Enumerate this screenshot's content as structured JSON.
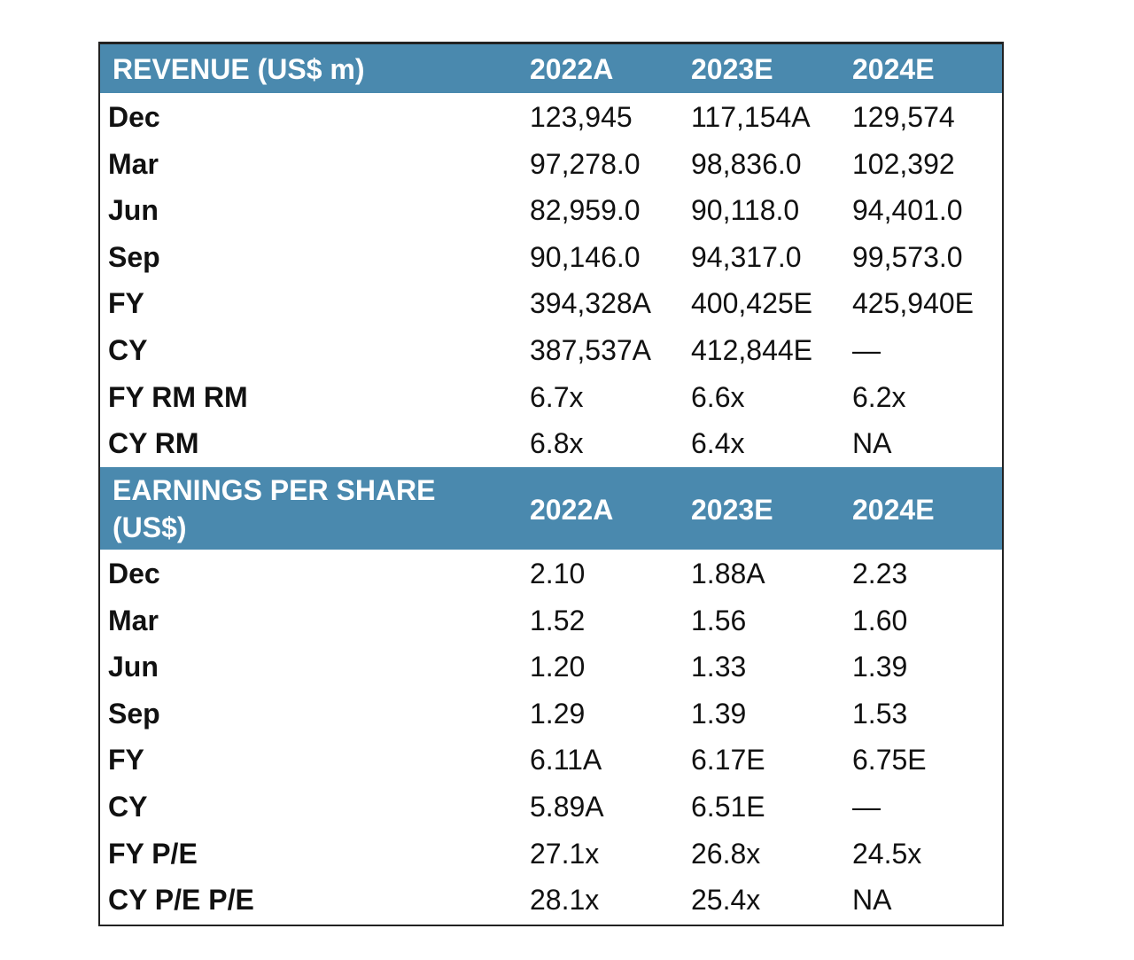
{
  "revenue": {
    "title": "REVENUE (US$ m)",
    "columns": [
      "2022A",
      "2023E",
      "2024E"
    ],
    "rows": [
      {
        "label": "Dec",
        "values": [
          "123,945",
          "117,154A",
          "129,574"
        ]
      },
      {
        "label": "Mar",
        "values": [
          "97,278.0",
          "98,836.0",
          "102,392"
        ]
      },
      {
        "label": "Jun",
        "values": [
          "82,959.0",
          "90,118.0",
          "94,401.0"
        ]
      },
      {
        "label": "Sep",
        "values": [
          "90,146.0",
          "94,317.0",
          "99,573.0"
        ]
      },
      {
        "label": "FY",
        "values": [
          "394,328A",
          "400,425E",
          "425,940E"
        ]
      },
      {
        "label": "CY",
        "values": [
          "387,537A",
          "412,844E",
          "—"
        ]
      },
      {
        "label": "FY RM RM",
        "values": [
          "6.7x",
          "6.6x",
          "6.2x"
        ]
      },
      {
        "label": "CY RM",
        "values": [
          "6.8x",
          "6.4x",
          "NA"
        ]
      }
    ]
  },
  "eps": {
    "title_line1": "EARNINGS PER SHARE",
    "title_line2": "(US$)",
    "columns": [
      "2022A",
      "2023E",
      "2024E"
    ],
    "rows": [
      {
        "label": "Dec",
        "values": [
          "2.10",
          "1.88A",
          "2.23"
        ]
      },
      {
        "label": "Mar",
        "values": [
          "1.52",
          "1.56",
          "1.60"
        ]
      },
      {
        "label": "Jun",
        "values": [
          "1.20",
          "1.33",
          "1.39"
        ]
      },
      {
        "label": "Sep",
        "values": [
          "1.29",
          "1.39",
          "1.53"
        ]
      },
      {
        "label": "FY",
        "values": [
          "6.11A",
          "6.17E",
          "6.75E"
        ]
      },
      {
        "label": "CY",
        "values": [
          "5.89A",
          "6.51E",
          "—"
        ]
      },
      {
        "label": "FY P/E",
        "values": [
          "27.1x",
          "26.8x",
          "24.5x"
        ]
      },
      {
        "label": "CY P/E P/E",
        "values": [
          "28.1x",
          "25.4x",
          "NA"
        ]
      }
    ]
  }
}
